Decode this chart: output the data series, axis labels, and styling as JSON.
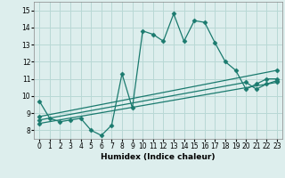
{
  "background_color": "#ddeeed",
  "grid_color": "#b8d8d5",
  "line_color": "#1a7a6e",
  "xlabel": "Humidex (Indice chaleur)",
  "xlim": [
    -0.5,
    23.5
  ],
  "ylim": [
    7.5,
    15.5
  ],
  "yticks": [
    8,
    9,
    10,
    11,
    12,
    13,
    14,
    15
  ],
  "xticks": [
    0,
    1,
    2,
    3,
    4,
    5,
    6,
    7,
    8,
    9,
    10,
    11,
    12,
    13,
    14,
    15,
    16,
    17,
    18,
    19,
    20,
    21,
    22,
    23
  ],
  "series": [
    {
      "x": [
        0,
        1,
        2,
        3,
        4,
        5,
        6,
        7,
        8,
        9,
        10,
        11,
        12,
        13,
        14,
        15,
        16,
        17,
        18,
        19,
        20,
        21,
        22,
        23
      ],
      "y": [
        9.7,
        8.7,
        8.5,
        8.6,
        8.7,
        8.0,
        7.7,
        8.3,
        11.3,
        9.3,
        13.8,
        13.6,
        13.2,
        14.8,
        13.2,
        14.4,
        14.3,
        13.1,
        12.0,
        11.5,
        10.4,
        10.7,
        11.0,
        11.0
      ]
    },
    {
      "x": [
        0,
        23
      ],
      "y": [
        8.8,
        11.5
      ]
    },
    {
      "x": [
        0,
        20,
        21,
        22,
        23
      ],
      "y": [
        8.6,
        10.8,
        10.4,
        10.7,
        10.9
      ]
    },
    {
      "x": [
        0,
        23
      ],
      "y": [
        8.4,
        10.8
      ]
    }
  ]
}
